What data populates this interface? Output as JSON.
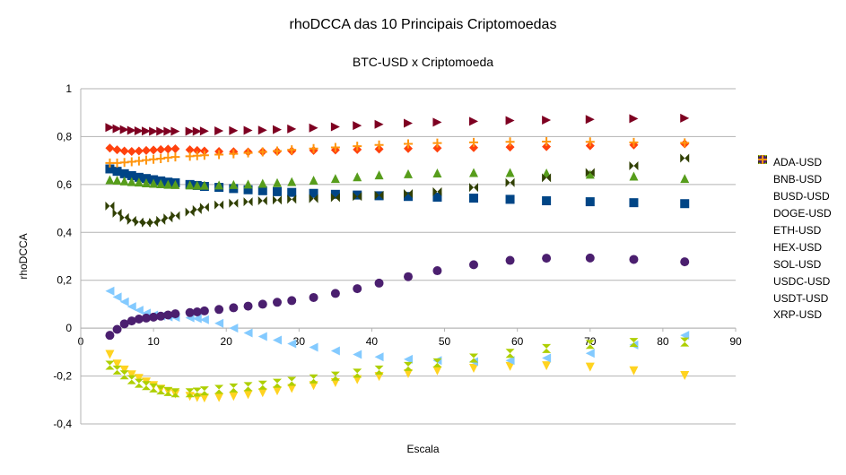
{
  "chart_data": {
    "type": "scatter",
    "title": "rhoDCCA das 10 Principais Criptomoedas",
    "subtitle": "BTC-USD x Criptomoeda",
    "xlabel": "Escala",
    "ylabel": "rhoDCCA",
    "xlim": [
      0,
      90
    ],
    "ylim": [
      -0.4,
      1
    ],
    "x_ticks": [
      "0",
      "10",
      "20",
      "30",
      "40",
      "50",
      "60",
      "70",
      "80",
      "90"
    ],
    "y_ticks": [
      "1",
      "0,8",
      "0,6",
      "0,4",
      "0,2",
      "0",
      "-0,2",
      "-0,4"
    ],
    "grid": true,
    "legend_position": "right",
    "x": [
      4,
      5,
      6,
      7,
      8,
      9,
      10,
      11,
      12,
      13,
      15,
      16,
      17,
      19,
      21,
      23,
      25,
      27,
      29,
      32,
      35,
      38,
      41,
      45,
      49,
      54,
      59,
      64,
      70,
      76,
      83
    ],
    "series": [
      {
        "name": "ADA-USD",
        "marker": "square",
        "color": "#004586",
        "values": [
          0.665,
          0.655,
          0.645,
          0.637,
          0.63,
          0.625,
          0.62,
          0.615,
          0.61,
          0.607,
          0.6,
          0.596,
          0.592,
          0.588,
          0.583,
          0.578,
          0.574,
          0.57,
          0.567,
          0.563,
          0.559,
          0.556,
          0.553,
          0.55,
          0.547,
          0.543,
          0.538,
          0.532,
          0.528,
          0.524,
          0.52
        ]
      },
      {
        "name": "BNB-USD",
        "marker": "diamond",
        "color": "#ff420e",
        "values": [
          0.752,
          0.745,
          0.74,
          0.738,
          0.74,
          0.742,
          0.744,
          0.746,
          0.748,
          0.749,
          0.745,
          0.742,
          0.74,
          0.738,
          0.737,
          0.736,
          0.737,
          0.738,
          0.74,
          0.742,
          0.744,
          0.746,
          0.748,
          0.75,
          0.752,
          0.754,
          0.756,
          0.758,
          0.762,
          0.765,
          0.77
        ]
      },
      {
        "name": "BUSD-USD",
        "marker": "triangle-down",
        "color": "#ffd320",
        "values": [
          -0.11,
          -0.15,
          -0.175,
          -0.195,
          -0.21,
          -0.225,
          -0.24,
          -0.255,
          -0.265,
          -0.275,
          -0.285,
          -0.29,
          -0.292,
          -0.29,
          -0.285,
          -0.278,
          -0.27,
          -0.262,
          -0.252,
          -0.24,
          -0.228,
          -0.215,
          -0.202,
          -0.19,
          -0.178,
          -0.168,
          -0.16,
          -0.157,
          -0.163,
          -0.178,
          -0.198
        ]
      },
      {
        "name": "DOGE-USD",
        "marker": "triangle-up",
        "color": "#579d1c",
        "values": [
          0.62,
          0.618,
          0.615,
          0.612,
          0.61,
          0.607,
          0.605,
          0.603,
          0.601,
          0.6,
          0.598,
          0.597,
          0.597,
          0.598,
          0.6,
          0.602,
          0.605,
          0.608,
          0.612,
          0.618,
          0.625,
          0.632,
          0.64,
          0.645,
          0.648,
          0.65,
          0.65,
          0.648,
          0.643,
          0.635,
          0.625
        ]
      },
      {
        "name": "ETH-USD",
        "marker": "triangle-right",
        "color": "#7e0021",
        "values": [
          0.838,
          0.833,
          0.829,
          0.826,
          0.824,
          0.823,
          0.822,
          0.822,
          0.822,
          0.822,
          0.822,
          0.822,
          0.823,
          0.824,
          0.825,
          0.826,
          0.827,
          0.829,
          0.832,
          0.836,
          0.841,
          0.846,
          0.851,
          0.856,
          0.86,
          0.864,
          0.867,
          0.869,
          0.872,
          0.875,
          0.877
        ]
      },
      {
        "name": "HEX-USD",
        "marker": "triangle-left",
        "color": "#83caff",
        "values": [
          0.155,
          0.13,
          0.11,
          0.09,
          0.075,
          0.063,
          0.055,
          0.05,
          0.047,
          0.045,
          0.043,
          0.04,
          0.035,
          0.02,
          0.0,
          -0.02,
          -0.035,
          -0.05,
          -0.065,
          -0.08,
          -0.095,
          -0.11,
          -0.12,
          -0.13,
          -0.135,
          -0.14,
          -0.135,
          -0.125,
          -0.105,
          -0.07,
          -0.03
        ]
      },
      {
        "name": "SOL-USD",
        "marker": "bowtie",
        "color": "#314004",
        "values": [
          0.51,
          0.48,
          0.462,
          0.45,
          0.443,
          0.44,
          0.442,
          0.45,
          0.46,
          0.47,
          0.485,
          0.495,
          0.505,
          0.515,
          0.522,
          0.528,
          0.532,
          0.535,
          0.538,
          0.541,
          0.545,
          0.55,
          0.555,
          0.562,
          0.57,
          0.588,
          0.608,
          0.628,
          0.65,
          0.678,
          0.71
        ]
      },
      {
        "name": "USDC-USD",
        "marker": "hourglass",
        "color": "#aecf00",
        "values": [
          -0.155,
          -0.175,
          -0.195,
          -0.215,
          -0.23,
          -0.24,
          -0.25,
          -0.258,
          -0.265,
          -0.27,
          -0.27,
          -0.267,
          -0.262,
          -0.256,
          -0.25,
          -0.244,
          -0.238,
          -0.23,
          -0.222,
          -0.212,
          -0.2,
          -0.188,
          -0.175,
          -0.16,
          -0.145,
          -0.125,
          -0.105,
          -0.085,
          -0.068,
          -0.06,
          -0.058
        ]
      },
      {
        "name": "USDT-USD",
        "marker": "circle",
        "color": "#4b1f6f",
        "values": [
          -0.03,
          -0.005,
          0.018,
          0.03,
          0.038,
          0.042,
          0.046,
          0.05,
          0.055,
          0.06,
          0.065,
          0.068,
          0.072,
          0.078,
          0.085,
          0.092,
          0.1,
          0.108,
          0.115,
          0.128,
          0.145,
          0.165,
          0.188,
          0.215,
          0.24,
          0.265,
          0.283,
          0.292,
          0.293,
          0.287,
          0.277
        ]
      },
      {
        "name": "XRP-USD",
        "marker": "star",
        "color": "#ff950e",
        "values": [
          0.69,
          0.69,
          0.692,
          0.695,
          0.698,
          0.702,
          0.705,
          0.708,
          0.712,
          0.715,
          0.718,
          0.72,
          0.722,
          0.725,
          0.728,
          0.732,
          0.736,
          0.74,
          0.745,
          0.75,
          0.755,
          0.76,
          0.765,
          0.77,
          0.773,
          0.776,
          0.778,
          0.779,
          0.778,
          0.776,
          0.774
        ]
      }
    ]
  }
}
